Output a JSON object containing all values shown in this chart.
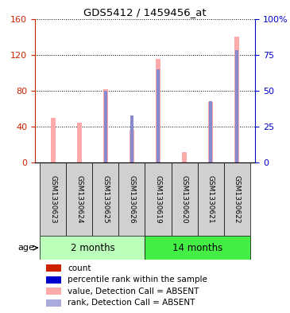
{
  "title": "GDS5412 / 1459456_at",
  "samples": [
    "GSM1330623",
    "GSM1330624",
    "GSM1330625",
    "GSM1330626",
    "GSM1330619",
    "GSM1330620",
    "GSM1330621",
    "GSM1330622"
  ],
  "groups": [
    {
      "label": "2 months",
      "indices": [
        0,
        1,
        2,
        3
      ],
      "color": "#bbffbb"
    },
    {
      "label": "14 months",
      "indices": [
        4,
        5,
        6,
        7
      ],
      "color": "#44ee44"
    }
  ],
  "pink_bars": [
    50,
    45,
    82,
    37,
    115,
    12,
    68,
    140
  ],
  "blue_bars": [
    0,
    0,
    50,
    33,
    65,
    0,
    43,
    78
  ],
  "left_ylim": [
    0,
    160
  ],
  "right_ylim": [
    0,
    100
  ],
  "left_yticks": [
    0,
    40,
    80,
    120,
    160
  ],
  "right_yticks": [
    0,
    25,
    50,
    75,
    100
  ],
  "right_yticklabels": [
    "0",
    "25",
    "50",
    "75",
    "100%"
  ],
  "pink_bar_width": 0.18,
  "blue_bar_width": 0.1,
  "pink_color": "#ffaaaa",
  "blue_color": "#8888cc",
  "left_axis_color": "#cc2200",
  "right_axis_color": "#0000cc",
  "grid_color": "#000000",
  "sample_bg_color": "#d0d0d0",
  "legend_items": [
    {
      "color": "#cc2200",
      "label": "count",
      "marker": "s"
    },
    {
      "color": "#0000cc",
      "label": "percentile rank within the sample",
      "marker": "s"
    },
    {
      "color": "#ffaaaa",
      "label": "value, Detection Call = ABSENT",
      "marker": "s"
    },
    {
      "color": "#aaaadd",
      "label": "rank, Detection Call = ABSENT",
      "marker": "s"
    }
  ]
}
